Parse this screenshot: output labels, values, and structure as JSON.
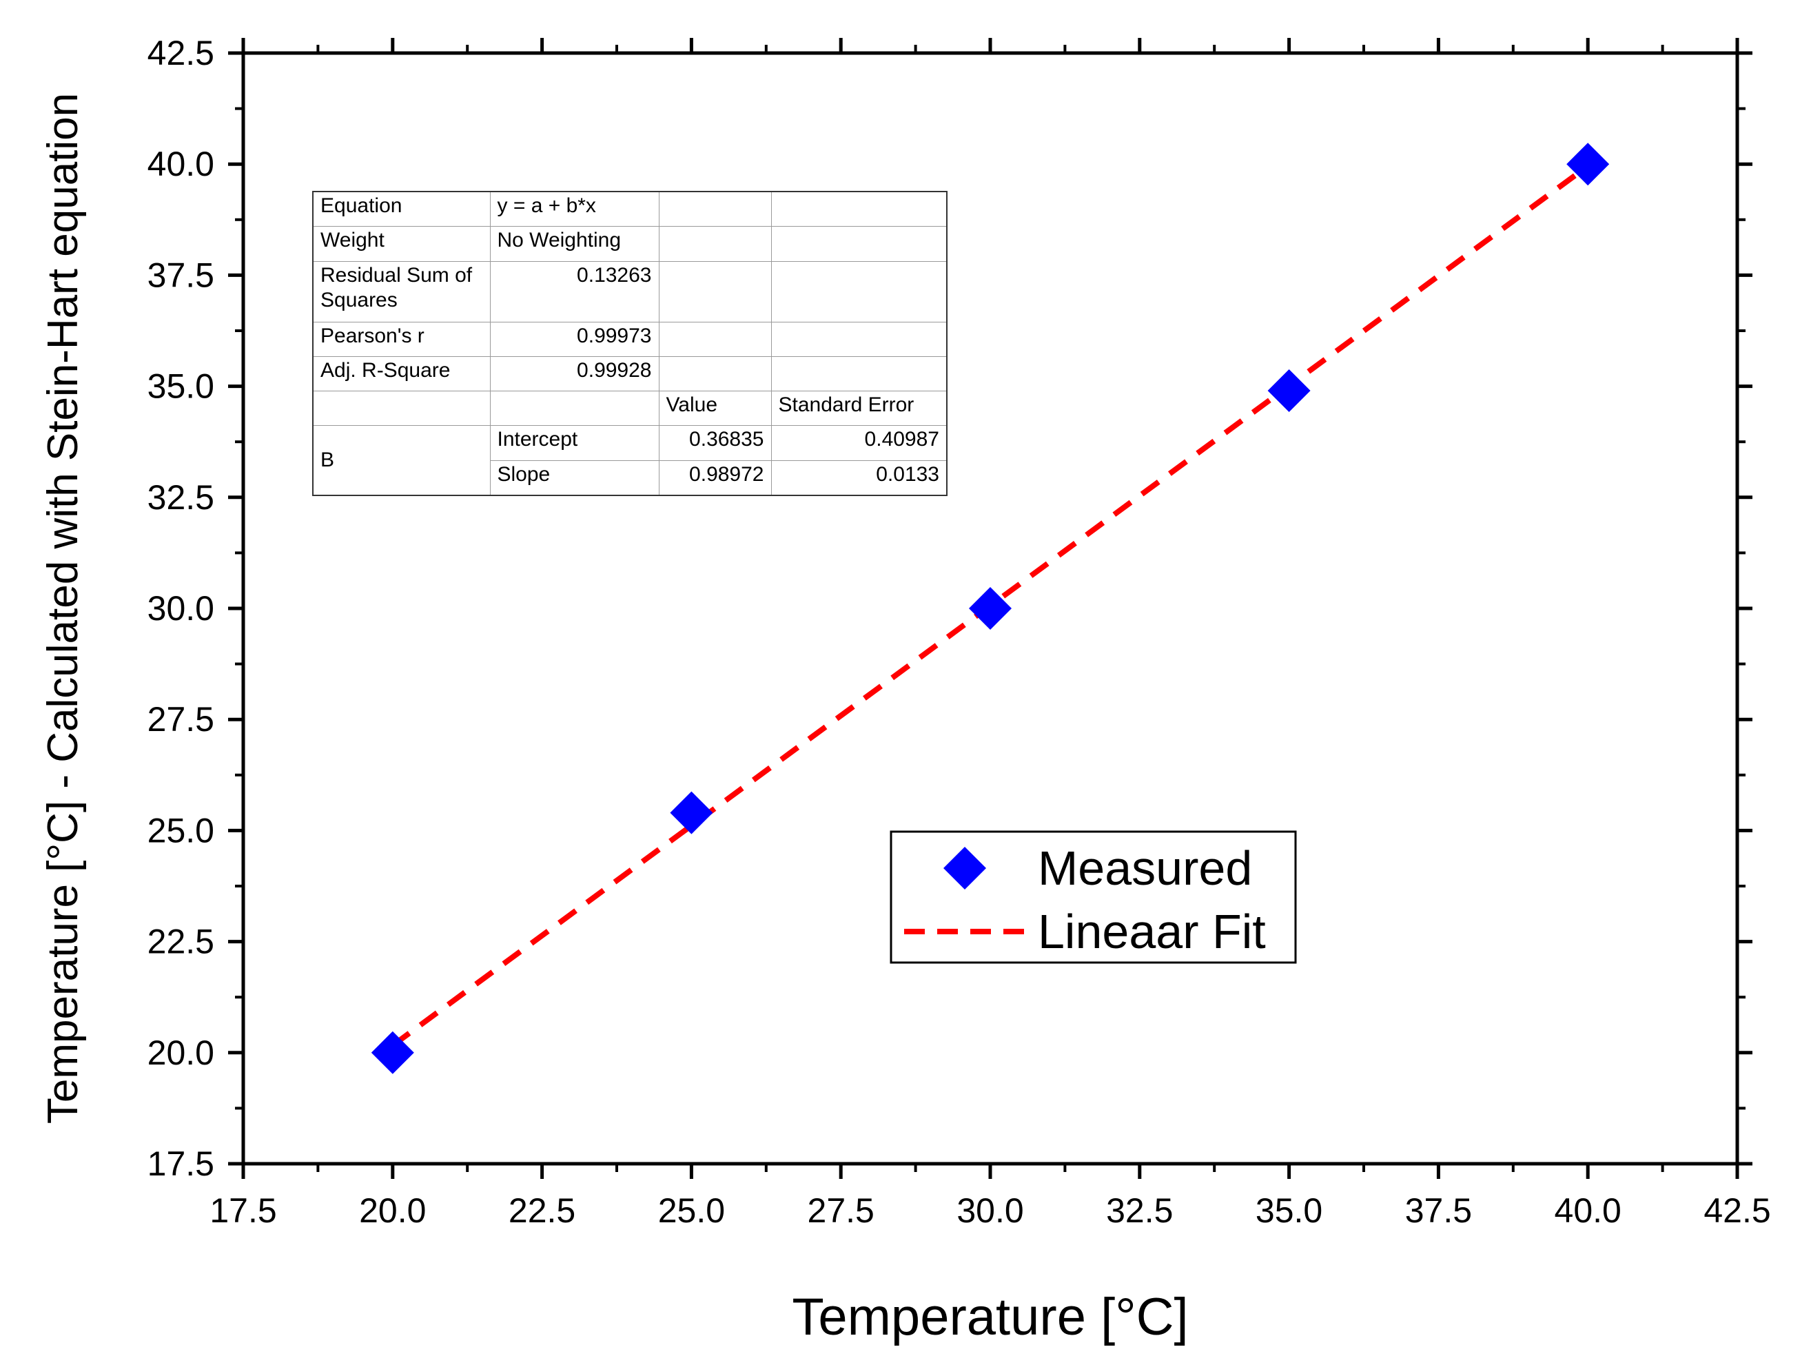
{
  "chart_data": {
    "type": "scatter",
    "title": "",
    "xlabel": "Temperature [°C]",
    "ylabel": "Temperature [°C] - Calculated with Stein-Hart equation",
    "xlim": [
      17.5,
      42.5
    ],
    "ylim": [
      17.5,
      42.5
    ],
    "xticks": [
      "17.5",
      "20.0",
      "22.5",
      "25.0",
      "27.5",
      "30.0",
      "32.5",
      "35.0",
      "37.5",
      "40.0",
      "42.5"
    ],
    "yticks": [
      "17.5",
      "20.0",
      "22.5",
      "25.0",
      "27.5",
      "30.0",
      "32.5",
      "35.0",
      "37.5",
      "40.0",
      "42.5"
    ],
    "grid": false,
    "legend_position": "center-right",
    "series": [
      {
        "name": "Measured",
        "kind": "scatter",
        "marker": "diamond",
        "color": "#0000ff",
        "x": [
          20.0,
          25.0,
          30.0,
          35.0,
          40.0
        ],
        "y": [
          20.0,
          25.4,
          30.0,
          34.9,
          40.0
        ]
      },
      {
        "name": "Lineaar Fit",
        "kind": "line",
        "style": "dashed",
        "color": "#ff0000",
        "x": [
          20.0,
          40.0
        ],
        "y": [
          20.16275,
          39.95715
        ]
      }
    ]
  },
  "fit_table": {
    "equation_label": "Equation",
    "equation_value": "y = a + b*x",
    "weight_label": "Weight",
    "weight_value": "No Weighting",
    "rss_label": "Residual Sum of Squares",
    "rss_value": "0.13263",
    "pearson_label": "Pearson's r",
    "pearson_value": "0.99973",
    "adjr_label": "Adj. R-Square",
    "adjr_value": "0.99928",
    "value_header": "Value",
    "stderr_header": "Standard Error",
    "group_label": "B",
    "intercept_label": "Intercept",
    "intercept_value": "0.36835",
    "intercept_error": "0.40987",
    "slope_label": "Slope",
    "slope_value": "0.98972",
    "slope_error": "0.0133"
  }
}
